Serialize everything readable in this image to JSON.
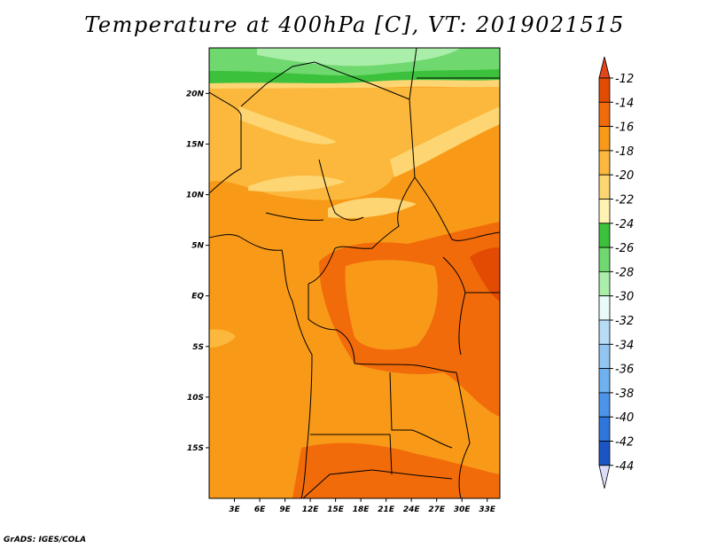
{
  "title": "Temperature at 400hPa [C], VT: 2019021515",
  "footer": "GrADS: IGES/COLA",
  "map": {
    "lon_range": [
      0,
      34.5
    ],
    "lat_range": [
      -20,
      24.5
    ],
    "lon_ticks": [
      "3E",
      "6E",
      "9E",
      "12E",
      "15E",
      "18E",
      "21E",
      "24E",
      "27E",
      "30E",
      "33E"
    ],
    "lat_ticks": [
      "20N",
      "15N",
      "10N",
      "5N",
      "EQ",
      "5S",
      "10S",
      "15S"
    ]
  },
  "colorbar": {
    "labels": [
      "-12",
      "-14",
      "-16",
      "-18",
      "-20",
      "-22",
      "-24",
      "-26",
      "-28",
      "-30",
      "-32",
      "-34",
      "-36",
      "-38",
      "-40",
      "-42",
      "-44"
    ],
    "colors": [
      "#e34a02",
      "#f26b0a",
      "#f89a18",
      "#fbb83c",
      "#fdd572",
      "#fff2b3",
      "#3cc13c",
      "#6fd86f",
      "#a9eea9",
      "#e8fbf8",
      "#b6dcf6",
      "#92c6f2",
      "#6fb0ee",
      "#4c94e8",
      "#2f76dc",
      "#1b55c4",
      "#0d2f9a",
      "#0a1464"
    ],
    "over_color": "#e0461a",
    "under_color": "#dcdcf8"
  }
}
